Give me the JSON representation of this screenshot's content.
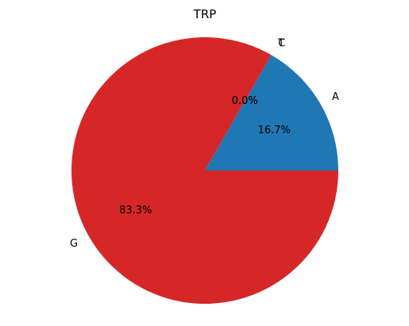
{
  "chart_data": {
    "type": "pie",
    "title": "TRP",
    "slices": [
      {
        "label": "A",
        "value": 16.7,
        "pct_label": "16.7%",
        "color": "#1f77b4"
      },
      {
        "label": "C",
        "value": 0.0,
        "pct_label": "0.0%",
        "color": "#ff7f0e"
      },
      {
        "label": "T",
        "value": 0.0,
        "pct_label": "0.0%",
        "color": "#2ca02c"
      },
      {
        "label": "G",
        "value": 83.3,
        "pct_label": "83.3%",
        "color": "#d62728"
      }
    ],
    "start_angle_deg": 0,
    "direction": "counterclockwise",
    "legend": "none"
  }
}
